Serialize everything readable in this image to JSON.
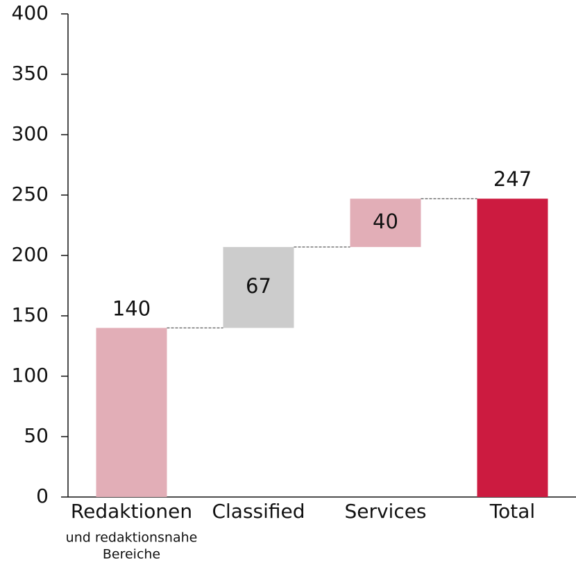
{
  "chart_data": {
    "type": "waterfall",
    "categories": [
      "Redaktionen",
      "Classified",
      "Services",
      "Total"
    ],
    "category_notes": [
      [
        "und redaktionsnahe",
        "Bereiche"
      ],
      null,
      null,
      null
    ],
    "values": [
      140,
      67,
      40,
      247
    ],
    "totals": [
      false,
      false,
      false,
      true
    ],
    "colors": [
      "#e2aeb7",
      "#cccccc",
      "#e2aeb7",
      "#cc1b40"
    ],
    "ylim": [
      0,
      400
    ],
    "yticks": [
      0,
      50,
      100,
      150,
      200,
      250,
      300,
      350,
      400
    ]
  }
}
